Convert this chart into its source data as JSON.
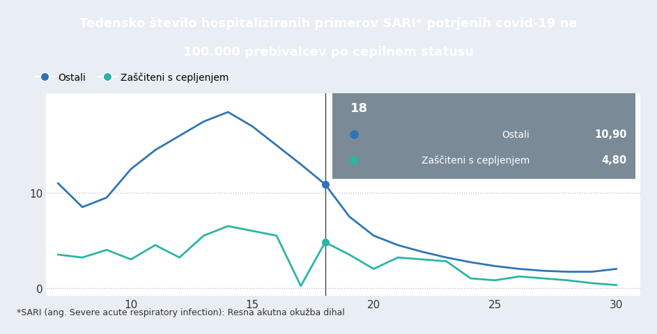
{
  "title_line1": "Tedensko število hospitaliziranih primerov SARI* potrjenih covid-19 na",
  "title_line2": "100.000 prebivalcev po cepilnem statusu",
  "title_bg": "#1a4f7a",
  "title_color": "#ffffff",
  "footnote": "*SARI (ang. Severe acute respiratory infection): Resna akutna okužba dihal",
  "legend_ostali": "Ostali",
  "legend_cepljeni": "Zaščiteni s cepljenjem",
  "ostali_color": "#2e75b6",
  "cepljeni_color": "#2ab5a5",
  "bg_color": "#e8eef4",
  "plot_bg": "#ffffff",
  "grid_color": "#bbbbbb",
  "x_ostali": [
    7,
    8,
    9,
    10,
    11,
    12,
    13,
    14,
    15,
    16,
    17,
    18,
    19,
    20,
    21,
    22,
    23,
    24,
    25,
    26,
    27,
    28,
    29,
    30
  ],
  "y_ostali": [
    11.0,
    8.5,
    9.5,
    12.5,
    14.5,
    16.0,
    17.5,
    18.5,
    17.0,
    15.0,
    13.0,
    10.9,
    7.5,
    5.5,
    4.5,
    3.8,
    3.2,
    2.7,
    2.3,
    2.0,
    1.8,
    1.7,
    1.7,
    2.0
  ],
  "x_cepljeni": [
    7,
    8,
    9,
    10,
    11,
    12,
    13,
    14,
    15,
    16,
    17,
    18,
    19,
    20,
    21,
    22,
    23,
    24,
    25,
    26,
    27,
    28,
    29,
    30
  ],
  "y_cepljeni": [
    3.5,
    3.2,
    4.0,
    3.0,
    4.5,
    3.2,
    5.5,
    6.5,
    6.0,
    5.5,
    0.2,
    4.8,
    3.5,
    2.0,
    3.2,
    3.0,
    2.8,
    1.0,
    0.8,
    1.2,
    1.0,
    0.8,
    0.5,
    0.3
  ],
  "tooltip_x": 18,
  "tooltip_week": "18",
  "tooltip_ostali_val": "10,90",
  "tooltip_cepljeni_val": "4,80",
  "xlim": [
    6.5,
    31.0
  ],
  "ylim": [
    -0.8,
    20.5
  ],
  "yticks": [
    0,
    10
  ],
  "xticks": [
    10,
    15,
    20,
    25,
    30
  ],
  "linewidth": 2.0,
  "tooltip_bg": "#7a8a96",
  "tooltip_text_color": "#ffffff"
}
